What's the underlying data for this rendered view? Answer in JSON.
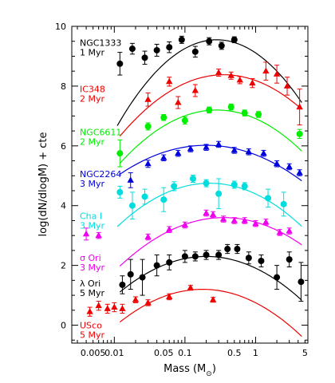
{
  "chart_data": {
    "type": "scatter",
    "xlabel_base": "Mass (M",
    "xlabel_sub": "⊙",
    "xlabel_end": ")",
    "ylabel": "log(dN/dlogM) + cte",
    "x_scale": "log",
    "xlim": [
      0.0025,
      5.5
    ],
    "ylim": [
      -0.6,
      10
    ],
    "x_ticks": [
      {
        "v": 0.005,
        "label": "0.005"
      },
      {
        "v": 0.01,
        "label": "0.01"
      },
      {
        "v": 0.05,
        "label": "0.05"
      },
      {
        "v": 0.1,
        "label": "0.1"
      },
      {
        "v": 0.5,
        "label": "0.5"
      },
      {
        "v": 1,
        "label": "1"
      },
      {
        "v": 5,
        "label": "5"
      }
    ],
    "y_ticks": [
      0,
      2,
      4,
      6,
      8,
      10
    ],
    "series": [
      {
        "name": "NGC1333",
        "age": "1 Myr",
        "color": "#000000",
        "marker": "circle",
        "label_y": 9.35,
        "points": [
          [
            0.012,
            8.75,
            0.38
          ],
          [
            0.018,
            9.25,
            0.18
          ],
          [
            0.027,
            8.95,
            0.22
          ],
          [
            0.04,
            9.2,
            0.2
          ],
          [
            0.06,
            9.3,
            0.18
          ],
          [
            0.09,
            9.55,
            0.12
          ],
          [
            0.14,
            9.15,
            0.18
          ],
          [
            0.22,
            9.5,
            0.12
          ],
          [
            0.33,
            9.35,
            0.12
          ],
          [
            0.5,
            9.55,
            0.1
          ]
        ],
        "curve": {
          "peak_logm": -0.55,
          "peak_y": 9.55,
          "curv": 1.45,
          "xmin": 0.011,
          "xmax": 4.5
        }
      },
      {
        "name": "IC348",
        "age": "2 Myr",
        "color": "#ee0000",
        "marker": "triangle",
        "label_y": 7.8,
        "points": [
          [
            0.03,
            7.55,
            0.22
          ],
          [
            0.06,
            8.15,
            0.15
          ],
          [
            0.08,
            7.45,
            0.2
          ],
          [
            0.14,
            7.85,
            0.2
          ],
          [
            0.3,
            8.45,
            0.12
          ],
          [
            0.45,
            8.35,
            0.12
          ],
          [
            0.6,
            8.2,
            0.12
          ],
          [
            0.9,
            8.1,
            0.15
          ],
          [
            1.4,
            8.5,
            0.3
          ],
          [
            2.0,
            8.4,
            0.3
          ],
          [
            2.8,
            8.0,
            0.3
          ],
          [
            4.2,
            7.3,
            0.6
          ]
        ],
        "curve": {
          "peak_logm": -0.45,
          "peak_y": 8.38,
          "curv": 0.95,
          "xmin": 0.012,
          "xmax": 4.5
        }
      },
      {
        "name": "NGC6611",
        "age": "2 Myr",
        "color": "#00ee00",
        "marker": "circle",
        "label_y": 6.35,
        "points": [
          [
            0.012,
            5.75,
            0.45
          ],
          [
            0.03,
            6.65,
            0.12
          ],
          [
            0.05,
            6.95,
            0.1
          ],
          [
            0.1,
            6.85,
            0.12
          ],
          [
            0.22,
            7.2,
            0.1
          ],
          [
            0.45,
            7.3,
            0.1
          ],
          [
            0.7,
            7.1,
            0.1
          ],
          [
            1.1,
            7.05,
            0.1
          ],
          [
            4.2,
            6.4,
            0.15
          ]
        ],
        "curve": {
          "peak_logm": -0.55,
          "peak_y": 7.2,
          "curv": 0.95,
          "xmin": 0.012,
          "xmax": 4.5
        }
      },
      {
        "name": "NGC2264",
        "age": "3 Myr",
        "color": "#0000dd",
        "marker": "triangle",
        "label_y": 4.95,
        "points": [
          [
            0.017,
            4.85,
            0.25
          ],
          [
            0.03,
            5.4,
            0.12
          ],
          [
            0.05,
            5.6,
            0.1
          ],
          [
            0.08,
            5.75,
            0.1
          ],
          [
            0.12,
            5.9,
            0.1
          ],
          [
            0.2,
            5.95,
            0.1
          ],
          [
            0.3,
            6.05,
            0.1
          ],
          [
            0.5,
            5.85,
            0.1
          ],
          [
            0.8,
            5.8,
            0.1
          ],
          [
            1.3,
            5.75,
            0.1
          ],
          [
            2.0,
            5.4,
            0.1
          ],
          [
            3.0,
            5.3,
            0.1
          ],
          [
            4.2,
            5.1,
            0.1
          ]
        ],
        "curve": {
          "peak_logm": -0.7,
          "peak_y": 6.02,
          "curv": 0.65,
          "xmin": 0.012,
          "xmax": 4.5
        }
      },
      {
        "name": "Cha I",
        "age": "3 Myr",
        "color": "#00dddd",
        "marker": "circle",
        "label_y": 3.55,
        "points": [
          [
            0.012,
            4.45,
            0.2
          ],
          [
            0.018,
            4.0,
            0.45
          ],
          [
            0.027,
            4.3,
            0.25
          ],
          [
            0.05,
            4.2,
            0.4
          ],
          [
            0.07,
            4.65,
            0.15
          ],
          [
            0.13,
            4.9,
            0.12
          ],
          [
            0.2,
            4.75,
            0.12
          ],
          [
            0.3,
            4.4,
            0.5
          ],
          [
            0.5,
            4.7,
            0.12
          ],
          [
            0.7,
            4.65,
            0.12
          ],
          [
            1.5,
            4.25,
            0.3
          ],
          [
            2.5,
            4.05,
            0.4
          ]
        ],
        "curve": {
          "peak_logm": -0.65,
          "peak_y": 4.75,
          "curv": 0.85,
          "xmin": 0.011,
          "xmax": 4.5
        }
      },
      {
        "name": "σ Ori",
        "age": "3 Myr",
        "color": "#ee00ee",
        "marker": "triangle",
        "label_y": 2.15,
        "points": [
          [
            0.004,
            3.05,
            0.2
          ],
          [
            0.006,
            3.0,
            0.1
          ],
          [
            0.03,
            2.95,
            0.1
          ],
          [
            0.06,
            3.2,
            0.1
          ],
          [
            0.1,
            3.35,
            0.1
          ],
          [
            0.2,
            3.75,
            0.1
          ],
          [
            0.25,
            3.7,
            0.1
          ],
          [
            0.35,
            3.55,
            0.1
          ],
          [
            0.5,
            3.5,
            0.1
          ],
          [
            0.7,
            3.5,
            0.1
          ],
          [
            1.0,
            3.4,
            0.1
          ],
          [
            1.4,
            3.45,
            0.1
          ],
          [
            2.2,
            3.1,
            0.1
          ],
          [
            3.0,
            3.15,
            0.1
          ]
        ],
        "curve": {
          "peak_logm": -0.45,
          "peak_y": 3.6,
          "curv": 0.75,
          "xmin": 0.012,
          "xmax": 4.5
        }
      },
      {
        "name": "λ Ori",
        "age": "5 Myr",
        "color": "#000000",
        "marker": "circle",
        "label_y": 1.3,
        "points": [
          [
            0.013,
            1.35,
            0.3
          ],
          [
            0.017,
            1.7,
            0.5
          ],
          [
            0.025,
            1.6,
            0.6
          ],
          [
            0.04,
            2.0,
            0.35
          ],
          [
            0.06,
            2.1,
            0.25
          ],
          [
            0.1,
            2.3,
            0.2
          ],
          [
            0.14,
            2.3,
            0.15
          ],
          [
            0.2,
            2.35,
            0.15
          ],
          [
            0.3,
            2.35,
            0.15
          ],
          [
            0.4,
            2.55,
            0.15
          ],
          [
            0.55,
            2.55,
            0.15
          ],
          [
            0.8,
            2.25,
            0.2
          ],
          [
            1.2,
            2.15,
            0.2
          ],
          [
            2.0,
            1.6,
            0.4
          ],
          [
            3.0,
            2.2,
            0.25
          ],
          [
            4.4,
            1.45,
            0.65
          ]
        ],
        "curve": {
          "peak_logm": -0.7,
          "peak_y": 2.3,
          "curv": 0.8,
          "xmin": 0.012,
          "xmax": 4.5
        }
      },
      {
        "name": "USco",
        "age": "5 Myr",
        "color": "#ee0000",
        "marker": "triangle",
        "label_y": -0.1,
        "points": [
          [
            0.0045,
            0.45,
            0.15
          ],
          [
            0.006,
            0.65,
            0.15
          ],
          [
            0.008,
            0.55,
            0.15
          ],
          [
            0.01,
            0.6,
            0.15
          ],
          [
            0.013,
            0.55,
            0.15
          ],
          [
            0.02,
            0.85,
            0.1
          ],
          [
            0.03,
            0.75,
            0.1
          ],
          [
            0.06,
            0.95,
            0.1
          ],
          [
            0.12,
            1.25,
            0.08
          ],
          [
            0.25,
            0.85,
            0.08
          ]
        ],
        "curve": {
          "peak_logm": -0.75,
          "peak_y": 1.2,
          "curv": 0.8,
          "xmin": 0.012,
          "xmax": 4.5
        }
      }
    ]
  }
}
